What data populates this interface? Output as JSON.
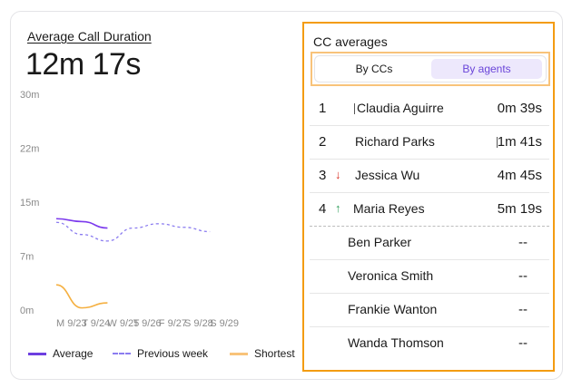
{
  "metric": {
    "title": "Average Call Duration",
    "value": "12m 17s"
  },
  "chart_data": {
    "type": "line",
    "categories": [
      "M 9/23",
      "T 9/24",
      "W 9/25",
      "T 9/26",
      "F 9/27",
      "S 9/28",
      "S 9/29"
    ],
    "y_ticks": [
      "30m",
      "22m",
      "15m",
      "7m",
      "0m"
    ],
    "ylim": [
      0,
      30
    ],
    "grid": false,
    "legend_position": "bottom",
    "series": [
      {
        "name": "Average",
        "style": "solid",
        "color": "#7c3aed",
        "values": [
          12.7,
          12.3,
          11.4,
          null,
          null,
          null,
          null
        ]
      },
      {
        "name": "Previous week",
        "style": "dashed",
        "color": "#8b7cf0",
        "values": [
          12.2,
          10.5,
          9.6,
          11.4,
          12.0,
          11.5,
          10.9
        ]
      },
      {
        "name": "Shortest",
        "style": "solid",
        "color": "#f5b041",
        "values": [
          3.5,
          0.3,
          1.0,
          null,
          null,
          null,
          null
        ]
      }
    ]
  },
  "panel": {
    "title": "CC averages",
    "tabs": {
      "left": "By CCs",
      "right": "By agents"
    },
    "rows": [
      {
        "rank": "1",
        "arrow": "",
        "name": "Claudia Aguirre",
        "value": "0m 39s"
      },
      {
        "rank": "2",
        "arrow": "",
        "name": "Richard Parks",
        "value": "1m 41s"
      },
      {
        "rank": "3",
        "arrow": "↓",
        "name": "Jessica Wu",
        "value": "4m 45s"
      },
      {
        "rank": "4",
        "arrow": "↑",
        "name": "Maria Reyes",
        "value": "5m 19s"
      },
      {
        "rank": "",
        "arrow": "",
        "name": "Ben Parker",
        "value": "--"
      },
      {
        "rank": "",
        "arrow": "",
        "name": "Veronica Smith",
        "value": "--"
      },
      {
        "rank": "",
        "arrow": "",
        "name": "Frankie Wanton",
        "value": "--"
      },
      {
        "rank": "",
        "arrow": "",
        "name": "Wanda Thomson",
        "value": "--"
      }
    ]
  }
}
